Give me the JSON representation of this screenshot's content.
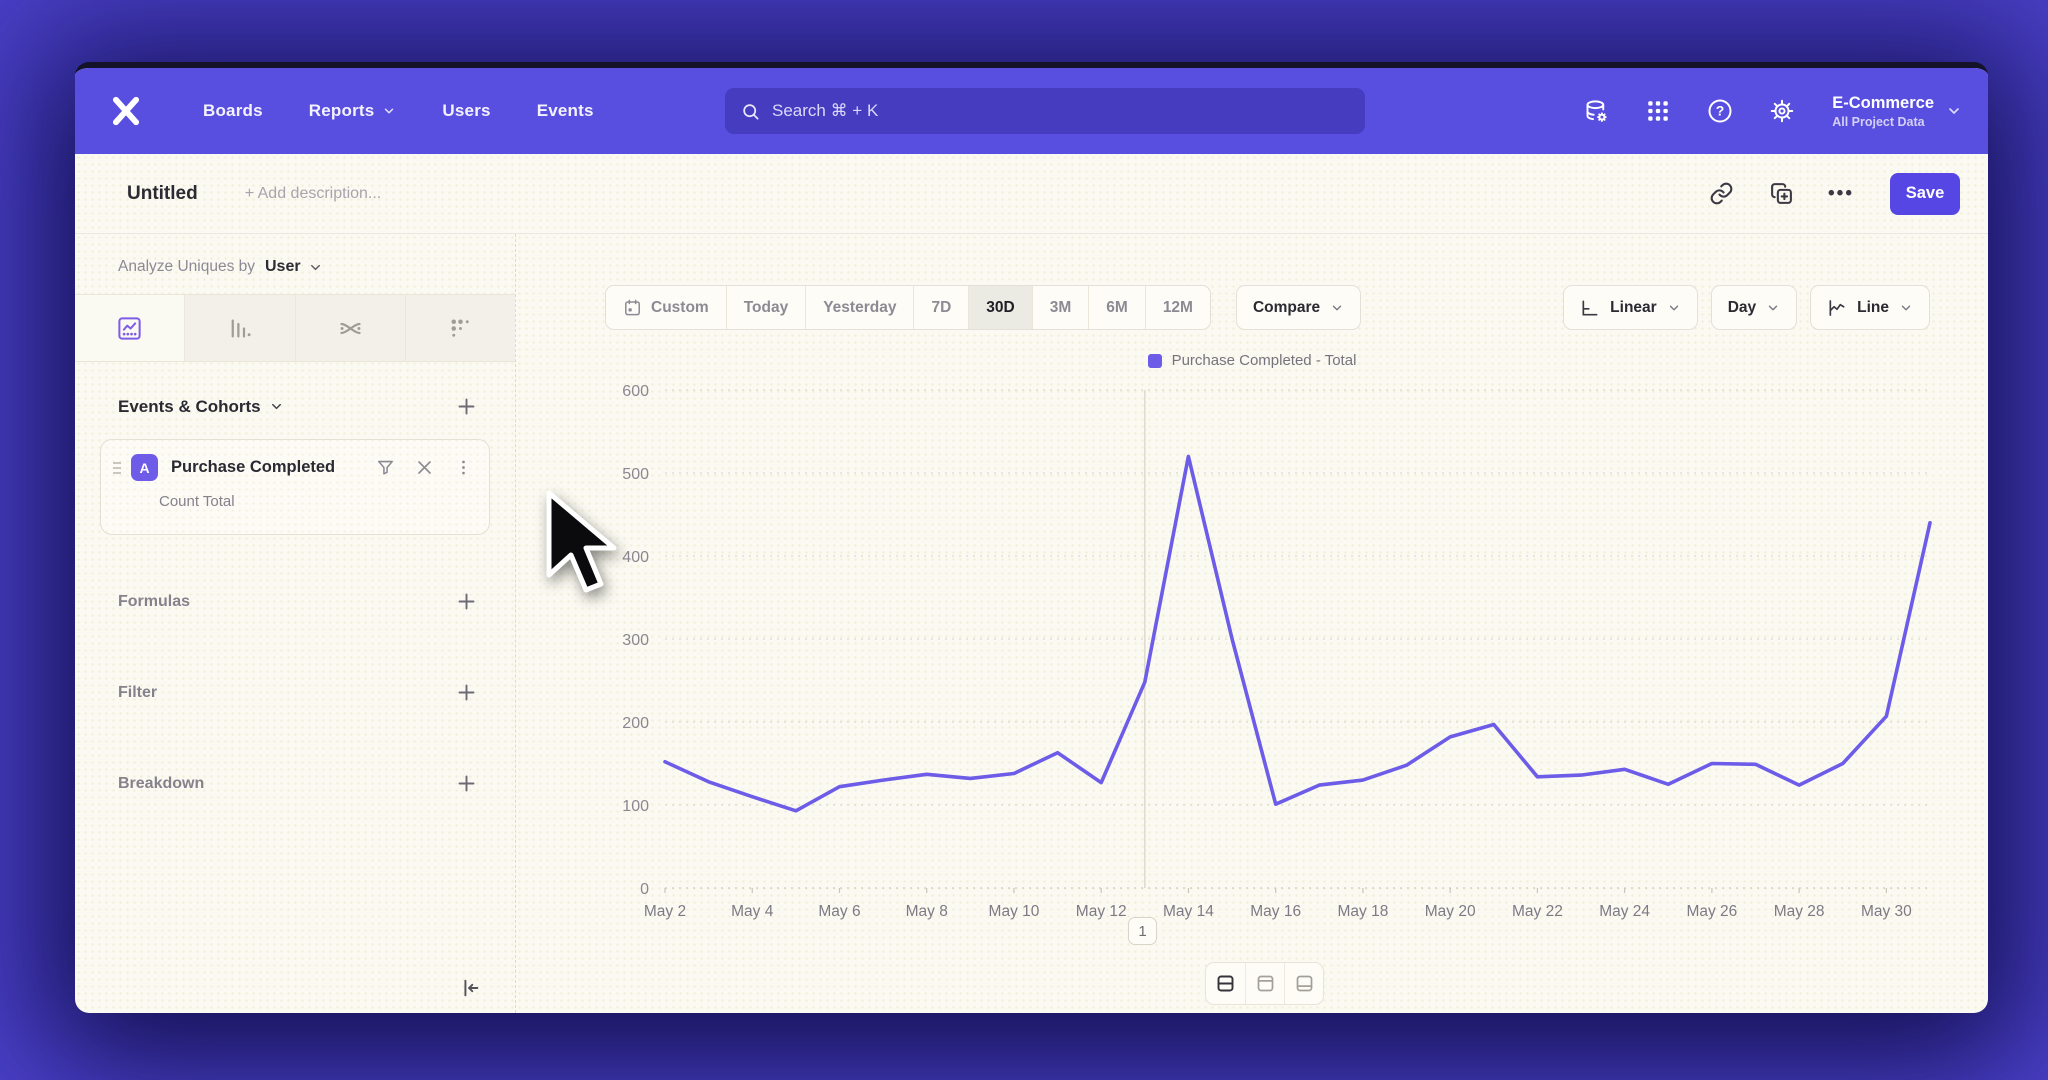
{
  "nav": {
    "items": [
      "Boards",
      "Reports",
      "Users",
      "Events"
    ],
    "search_placeholder": "Search  ⌘ + K",
    "project": {
      "name": "E-Commerce",
      "subtitle": "All Project Data"
    },
    "help_glyph": "?"
  },
  "header": {
    "title": "Untitled",
    "description_placeholder": "+ Add description...",
    "save_label": "Save",
    "more_label": "•••"
  },
  "sidebar": {
    "analyze_label": "Analyze Uniques by",
    "analyze_value": "User",
    "events_section": "Events & Cohorts",
    "event_card": {
      "badge": "A",
      "title": "Purchase Completed",
      "subtitle": "Count Total"
    },
    "sections": [
      "Formulas",
      "Filter",
      "Breakdown"
    ]
  },
  "controls": {
    "date_ranges": [
      "Custom",
      "Today",
      "Yesterday",
      "7D",
      "30D",
      "3M",
      "6M",
      "12M"
    ],
    "active_range": "30D",
    "compare_label": "Compare",
    "scale_label": "Linear",
    "interval_label": "Day",
    "chart_type_label": "Line"
  },
  "annotation_badge": "1",
  "colors": {
    "accent": "#584ee0",
    "line": "#6c5ce8",
    "save_button": "#5646e4",
    "event_badge": "#6e5be8"
  },
  "chart_data": {
    "type": "line",
    "title": "",
    "x": [
      "May 2",
      "May 3",
      "May 4",
      "May 5",
      "May 6",
      "May 7",
      "May 8",
      "May 9",
      "May 10",
      "May 11",
      "May 12",
      "May 13",
      "May 14",
      "May 15",
      "May 16",
      "May 17",
      "May 18",
      "May 19",
      "May 20",
      "May 21",
      "May 22",
      "May 23",
      "May 24",
      "May 25",
      "May 26",
      "May 27",
      "May 28",
      "May 29",
      "May 30",
      "May 31"
    ],
    "series": [
      {
        "name": "Purchase Completed - Total",
        "color": "#6c5ce8",
        "values": [
          152,
          128,
          110,
          93,
          122,
          130,
          137,
          132,
          138,
          163,
          127,
          248,
          520,
          300,
          101,
          124,
          130,
          148,
          182,
          197,
          134,
          136,
          143,
          125,
          150,
          149,
          124,
          150,
          207,
          440
        ]
      }
    ],
    "ylim": [
      0,
      600
    ],
    "yticks": [
      0,
      100,
      200,
      300,
      400,
      500,
      600
    ],
    "x_tick_every": 2,
    "grid": true,
    "legend_position": "top",
    "annotation_index": 11
  }
}
